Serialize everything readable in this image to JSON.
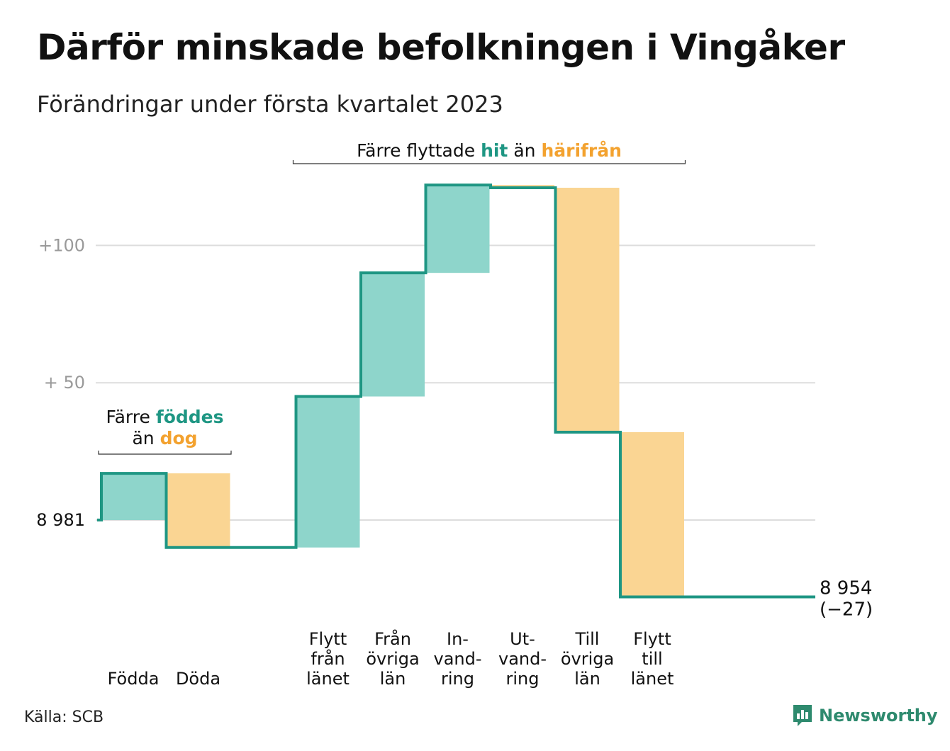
{
  "title": "Därför minskade befolkningen i Vingåker",
  "subtitle": "Förändringar under första kvartalet 2023",
  "source": "Källa: SCB",
  "brand": {
    "name": "Newsworthy",
    "icon": "bar-chart-logo-icon"
  },
  "colors": {
    "increase_fill": "#8ed5cb",
    "decrease_fill": "#fad593",
    "line": "#1e9683",
    "increase_text": "#1e9683",
    "decrease_text": "#f3a22f",
    "grid": "#dddddd",
    "tick_text": "#9a9a9a"
  },
  "chart_data": {
    "type": "waterfall",
    "start": {
      "label": "8 981",
      "value": 8981
    },
    "end": {
      "label_value": "8 954",
      "label_change": "(−27)",
      "value": 8954,
      "change": -27
    },
    "steps": [
      {
        "label": [
          "Födda"
        ],
        "change": 17,
        "kind": "increase"
      },
      {
        "label": [
          "Döda"
        ],
        "change": -27,
        "kind": "decrease"
      },
      {
        "label": [],
        "change": 0,
        "kind": "none"
      },
      {
        "label": [
          "Flytt",
          "från",
          "länet"
        ],
        "change": 55,
        "kind": "increase"
      },
      {
        "label": [
          "Från",
          "övriga",
          "län"
        ],
        "change": 45,
        "kind": "increase"
      },
      {
        "label": [
          "In-",
          "vand-",
          "ring"
        ],
        "change": 32,
        "kind": "increase"
      },
      {
        "label": [
          "Ut-",
          "vand-",
          "ring"
        ],
        "change": -1,
        "kind": "decrease"
      },
      {
        "label": [
          "Till",
          "övriga",
          "län"
        ],
        "change": -89,
        "kind": "decrease"
      },
      {
        "label": [
          "Flytt",
          "till",
          "länet"
        ],
        "change": -60,
        "kind": "decrease"
      },
      {
        "label": [],
        "change": 0,
        "kind": "none"
      }
    ],
    "yticks": [
      {
        "value": 0,
        "label": "8 981"
      },
      {
        "value": 50,
        "label": "+ 50"
      },
      {
        "value": 100,
        "label": "+100"
      }
    ],
    "ylim": [
      -30,
      125
    ],
    "annotations": [
      {
        "id": "births",
        "parts": [
          [
            {
              "text": "Färre ",
              "style": "plain"
            },
            {
              "text": "föddes",
              "style": "increase"
            }
          ],
          [
            {
              "text": "än ",
              "style": "plain"
            },
            {
              "text": "dog",
              "style": "decrease"
            }
          ]
        ],
        "span_steps": [
          0,
          1
        ]
      },
      {
        "id": "migration",
        "parts": [
          [
            {
              "text": "Färre flyttade ",
              "style": "plain"
            },
            {
              "text": "hit",
              "style": "increase"
            },
            {
              "text": " än ",
              "style": "plain"
            },
            {
              "text": "härifrån",
              "style": "decrease"
            }
          ]
        ],
        "span_steps": [
          3,
          8
        ]
      }
    ],
    "grid": true
  }
}
